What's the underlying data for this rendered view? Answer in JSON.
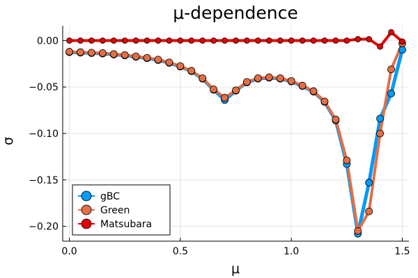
{
  "chart_data": {
    "type": "line",
    "title": "μ-dependence",
    "xlabel": "μ",
    "ylabel": "σ",
    "xlim": [
      -0.03,
      1.53
    ],
    "ylim": [
      -0.216,
      0.016
    ],
    "xticks": [
      0.0,
      0.5,
      1.0,
      1.5
    ],
    "xtick_labels": [
      "0.0",
      "0.5",
      "1.0",
      "1.5"
    ],
    "yticks": [
      0.0,
      -0.05,
      -0.1,
      -0.15,
      -0.2
    ],
    "ytick_labels": [
      "0.00",
      "−0.05",
      "−0.10",
      "−0.15",
      "−0.20"
    ],
    "grid": true,
    "legend_position": "bottom-left",
    "x": [
      0.0,
      0.05,
      0.1,
      0.15,
      0.2,
      0.25,
      0.3,
      0.35,
      0.4,
      0.45,
      0.5,
      0.55,
      0.6,
      0.65,
      0.7,
      0.75,
      0.8,
      0.85,
      0.9,
      0.95,
      1.0,
      1.05,
      1.1,
      1.15,
      1.2,
      1.25,
      1.3,
      1.35,
      1.4,
      1.45,
      1.5
    ],
    "series": [
      {
        "name": "gBC",
        "color": "#009AF9",
        "values": [
          -0.0125,
          -0.013,
          -0.0135,
          -0.014,
          -0.015,
          -0.016,
          -0.0175,
          -0.019,
          -0.021,
          -0.024,
          -0.028,
          -0.033,
          -0.041,
          -0.053,
          -0.064,
          -0.054,
          -0.045,
          -0.041,
          -0.04,
          -0.041,
          -0.044,
          -0.049,
          -0.055,
          -0.066,
          -0.086,
          -0.133,
          -0.208,
          -0.153,
          -0.084,
          -0.057,
          -0.01
        ]
      },
      {
        "name": "Green",
        "color": "#E26F46",
        "values": [
          -0.012,
          -0.0125,
          -0.013,
          -0.0135,
          -0.0145,
          -0.0155,
          -0.017,
          -0.0185,
          -0.0205,
          -0.0235,
          -0.0275,
          -0.0325,
          -0.0405,
          -0.0525,
          -0.0615,
          -0.0535,
          -0.0445,
          -0.0405,
          -0.0395,
          -0.0405,
          -0.0435,
          -0.0485,
          -0.0545,
          -0.0655,
          -0.085,
          -0.129,
          -0.205,
          -0.184,
          -0.1,
          -0.031,
          -0.003
        ]
      },
      {
        "name": "Matsubara",
        "color": "#E50000",
        "values": [
          0.0,
          0.0,
          0.0,
          0.0,
          0.0,
          0.0,
          0.0,
          0.0,
          0.0,
          0.0,
          0.0,
          0.0,
          0.0,
          0.0,
          0.0,
          0.0,
          0.0,
          0.0,
          0.0,
          0.0,
          0.0,
          0.0,
          0.0,
          0.0,
          0.0,
          0.0,
          0.0015,
          0.0015,
          -0.0065,
          0.009,
          -0.001
        ]
      }
    ]
  }
}
